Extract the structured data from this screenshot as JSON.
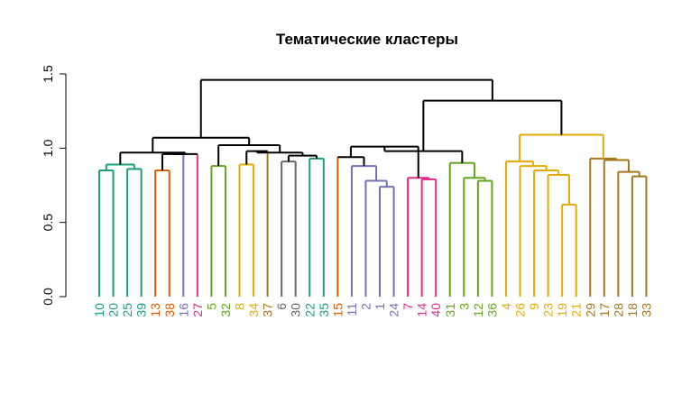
{
  "chart_data": {
    "type": "dendrogram",
    "title": "Тематические кластеры",
    "xlabel": "",
    "ylabel": "",
    "ylim": [
      0,
      1.5
    ],
    "yticks": [
      {
        "value": 0.0,
        "label": "0.0"
      },
      {
        "value": 0.5,
        "label": "0.5"
      },
      {
        "value": 1.0,
        "label": "1.0"
      },
      {
        "value": 1.5,
        "label": "1.5"
      }
    ],
    "leaves": [
      {
        "label": "10",
        "color": "#1b9e77"
      },
      {
        "label": "20",
        "color": "#1b9e77"
      },
      {
        "label": "25",
        "color": "#1b9e77"
      },
      {
        "label": "39",
        "color": "#1b9e77"
      },
      {
        "label": "13",
        "color": "#d95f02"
      },
      {
        "label": "38",
        "color": "#d95f02"
      },
      {
        "label": "16",
        "color": "#7570b3"
      },
      {
        "label": "27",
        "color": "#e7298a"
      },
      {
        "label": "5",
        "color": "#66a61e"
      },
      {
        "label": "32",
        "color": "#66a61e"
      },
      {
        "label": "8",
        "color": "#e6ab02"
      },
      {
        "label": "34",
        "color": "#e6ab02"
      },
      {
        "label": "37",
        "color": "#a6761d"
      },
      {
        "label": "6",
        "color": "#666666"
      },
      {
        "label": "30",
        "color": "#666666"
      },
      {
        "label": "22",
        "color": "#1b9e77"
      },
      {
        "label": "35",
        "color": "#1b9e77"
      },
      {
        "label": "15",
        "color": "#d95f02"
      },
      {
        "label": "11",
        "color": "#7570b3"
      },
      {
        "label": "2",
        "color": "#7570b3"
      },
      {
        "label": "1",
        "color": "#7570b3"
      },
      {
        "label": "24",
        "color": "#7570b3"
      },
      {
        "label": "7",
        "color": "#e7298a"
      },
      {
        "label": "14",
        "color": "#e7298a"
      },
      {
        "label": "40",
        "color": "#e7298a"
      },
      {
        "label": "31",
        "color": "#66a61e"
      },
      {
        "label": "3",
        "color": "#66a61e"
      },
      {
        "label": "12",
        "color": "#66a61e"
      },
      {
        "label": "36",
        "color": "#66a61e"
      },
      {
        "label": "4",
        "color": "#e6ab02"
      },
      {
        "label": "26",
        "color": "#e6ab02"
      },
      {
        "label": "9",
        "color": "#e6ab02"
      },
      {
        "label": "23",
        "color": "#e6ab02"
      },
      {
        "label": "19",
        "color": "#e6ab02"
      },
      {
        "label": "21",
        "color": "#e6ab02"
      },
      {
        "label": "29",
        "color": "#a6761d"
      },
      {
        "label": "17",
        "color": "#a6761d"
      },
      {
        "label": "28",
        "color": "#a6761d"
      },
      {
        "label": "18",
        "color": "#a6761d"
      },
      {
        "label": "33",
        "color": "#a6761d"
      }
    ],
    "merges": [
      {
        "id": "m1",
        "a": "L0",
        "b": "L1",
        "height": 0.85,
        "color": "#1b9e77"
      },
      {
        "id": "m2",
        "a": "L2",
        "b": "L3",
        "height": 0.86,
        "color": "#1b9e77"
      },
      {
        "id": "m3",
        "a": "m1",
        "b": "m2",
        "height": 0.89,
        "color": "#1b9e77"
      },
      {
        "id": "m4",
        "a": "L4",
        "b": "L5",
        "height": 0.85,
        "color": "#d95f02"
      },
      {
        "id": "m5",
        "a": "m4",
        "b": "L6",
        "height": 0.96,
        "color": "#000000"
      },
      {
        "id": "m6",
        "a": "m5",
        "b": "L7",
        "height": 0.96,
        "color": "#000000"
      },
      {
        "id": "m7",
        "a": "m3",
        "b": "m6",
        "height": 0.97,
        "color": "#000000"
      },
      {
        "id": "m8",
        "a": "L8",
        "b": "L9",
        "height": 0.88,
        "color": "#66a61e"
      },
      {
        "id": "m9",
        "a": "L10",
        "b": "L11",
        "height": 0.89,
        "color": "#e6ab02"
      },
      {
        "id": "m10",
        "a": "m9",
        "b": "L12",
        "height": 0.98,
        "color": "#000000"
      },
      {
        "id": "m11",
        "a": "L13",
        "b": "L14",
        "height": 0.91,
        "color": "#666666"
      },
      {
        "id": "m12",
        "a": "L15",
        "b": "L16",
        "height": 0.93,
        "color": "#1b9e77"
      },
      {
        "id": "m13",
        "a": "m11",
        "b": "m12",
        "height": 0.95,
        "color": "#000000"
      },
      {
        "id": "m14",
        "a": "m10",
        "b": "m13",
        "height": 0.97,
        "color": "#000000"
      },
      {
        "id": "m15",
        "a": "m8",
        "b": "m14",
        "height": 1.02,
        "color": "#000000"
      },
      {
        "id": "m16",
        "a": "m7",
        "b": "m15",
        "height": 1.07,
        "color": "#000000"
      },
      {
        "id": "m17",
        "a": "L20",
        "b": "L21",
        "height": 0.74,
        "color": "#7570b3"
      },
      {
        "id": "m18",
        "a": "L19",
        "b": "m17",
        "height": 0.78,
        "color": "#7570b3"
      },
      {
        "id": "m19",
        "a": "L18",
        "b": "m18",
        "height": 0.88,
        "color": "#7570b3"
      },
      {
        "id": "m20",
        "a": "L17",
        "b": "m19",
        "height": 0.94,
        "color": "#000000"
      },
      {
        "id": "m21",
        "a": "L23",
        "b": "L24",
        "height": 0.79,
        "color": "#e7298a"
      },
      {
        "id": "m22",
        "a": "L22",
        "b": "m21",
        "height": 0.8,
        "color": "#e7298a"
      },
      {
        "id": "m23",
        "a": "m20",
        "b": "m22",
        "height": 1.01,
        "color": "#000000"
      },
      {
        "id": "m24",
        "a": "L27",
        "b": "L28",
        "height": 0.78,
        "color": "#66a61e"
      },
      {
        "id": "m25",
        "a": "L26",
        "b": "m24",
        "height": 0.8,
        "color": "#66a61e"
      },
      {
        "id": "m26",
        "a": "m25",
        "b": "L25",
        "height": 0.9,
        "color": "#66a61e"
      },
      {
        "id": "m27",
        "a": "m23",
        "b": "m26",
        "height": 0.98,
        "color": "#000000"
      },
      {
        "id": "m28",
        "a": "L33",
        "b": "L34",
        "height": 0.62,
        "color": "#e6ab02"
      },
      {
        "id": "m29",
        "a": "L32",
        "b": "m28",
        "height": 0.82,
        "color": "#e6ab02"
      },
      {
        "id": "m30",
        "a": "L31",
        "b": "m29",
        "height": 0.85,
        "color": "#e6ab02"
      },
      {
        "id": "m31",
        "a": "L30",
        "b": "m30",
        "height": 0.88,
        "color": "#e6ab02"
      },
      {
        "id": "m32",
        "a": "L29",
        "b": "m31",
        "height": 0.91,
        "color": "#e6ab02"
      },
      {
        "id": "m33",
        "a": "L38",
        "b": "L39",
        "height": 0.81,
        "color": "#a6761d"
      },
      {
        "id": "m34",
        "a": "L37",
        "b": "m33",
        "height": 0.84,
        "color": "#a6761d"
      },
      {
        "id": "m35",
        "a": "L36",
        "b": "m34",
        "height": 0.92,
        "color": "#a6761d"
      },
      {
        "id": "m36",
        "a": "L35",
        "b": "m35",
        "height": 0.93,
        "color": "#a6761d"
      },
      {
        "id": "m37",
        "a": "m32",
        "b": "m36",
        "height": 1.09,
        "color": "#e6ab02"
      },
      {
        "id": "m38",
        "a": "m27",
        "b": "m37",
        "height": 1.32,
        "color": "#000000"
      },
      {
        "id": "m39",
        "a": "m16",
        "b": "m38",
        "height": 1.46,
        "color": "#000000"
      }
    ]
  }
}
